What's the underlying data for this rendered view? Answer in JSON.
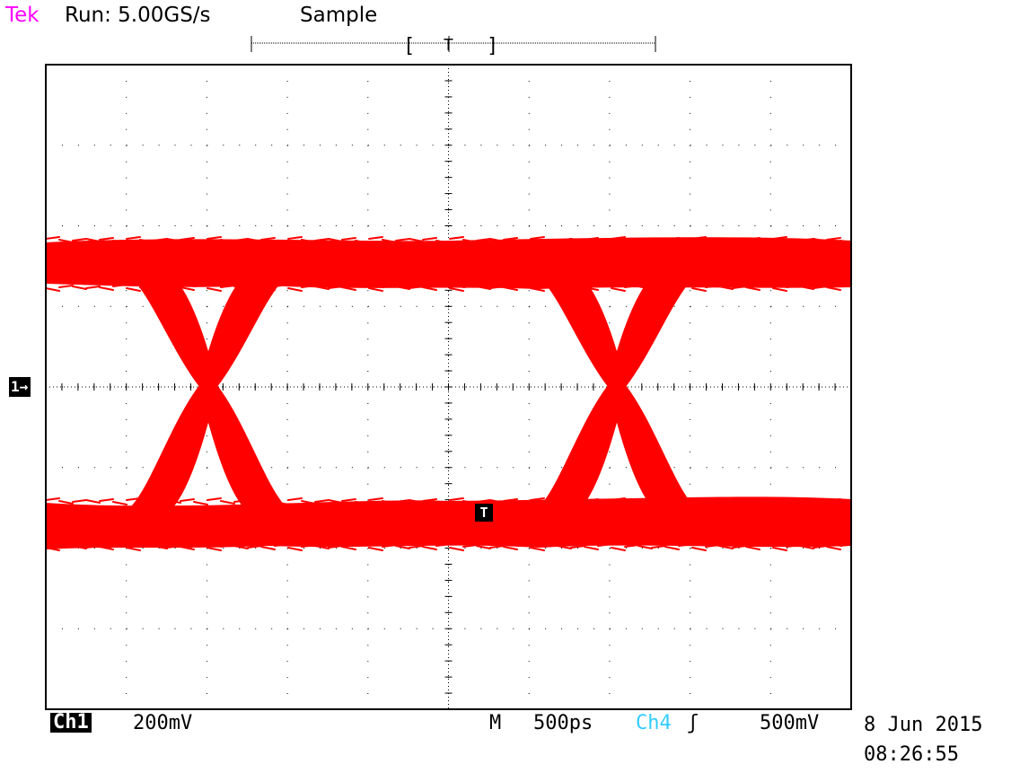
{
  "header": {
    "brand": "Tek",
    "run_status": "Run: 5.00GS/s",
    "acquisition_mode": "Sample",
    "record_trigger_label": "T",
    "record_bracket_left": "[",
    "record_bracket_right": "]"
  },
  "markers": {
    "channel_marker": "1→",
    "trigger_marker": "T"
  },
  "footer": {
    "channel": "Ch1",
    "channel_scale": "200mV",
    "timebase_prefix": "M",
    "timebase": "500ps",
    "trigger_source": "Ch4",
    "trigger_slope_icon": "rising-edge-icon",
    "trigger_slope": "ʃ",
    "trigger_level": "500mV",
    "date": "8 Jun 2015",
    "time": "08:26:55"
  },
  "colors": {
    "brand": "#ff00ff",
    "waveform": "#ff0000",
    "trigger_source": "#33ccff",
    "graticule": "#000000"
  }
}
